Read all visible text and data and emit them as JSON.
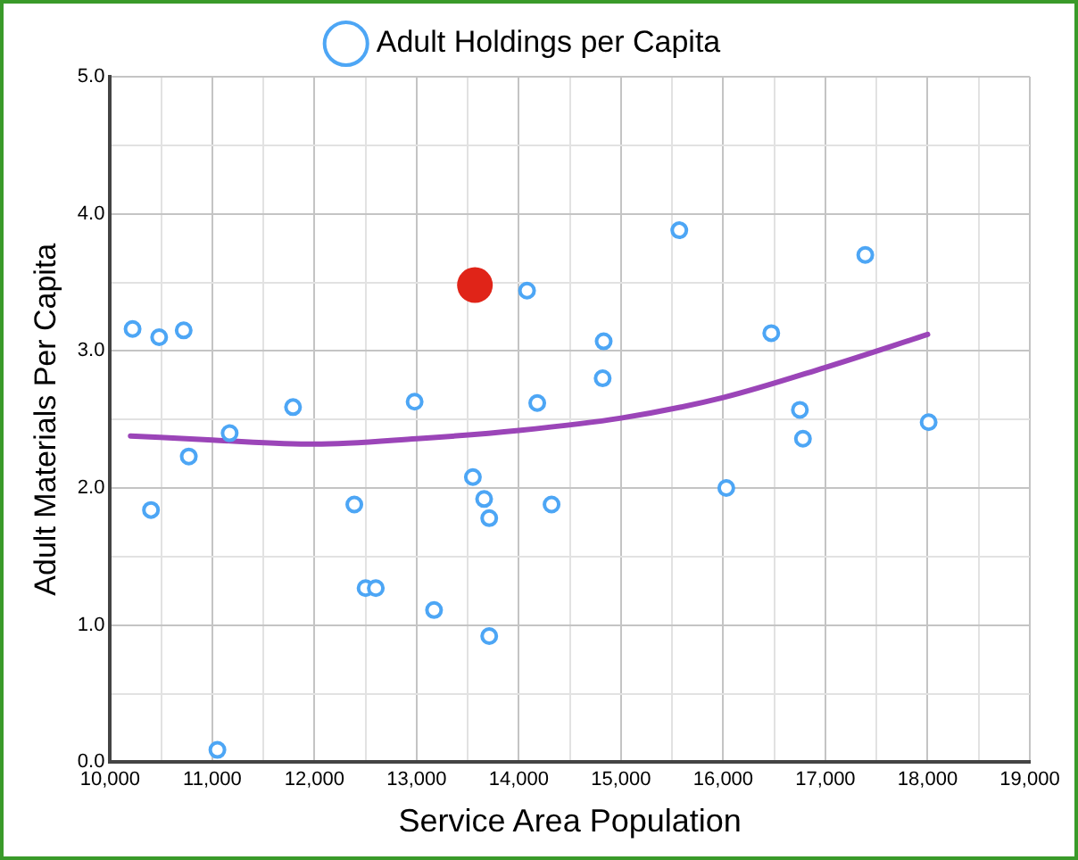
{
  "chart_data": {
    "type": "scatter",
    "xlabel": "Service Area Population",
    "ylabel": "Adult Materials Per Capita",
    "series": [
      {
        "name": "Adult Holdings per Capita",
        "color": "#4da6f5",
        "marker": "circle",
        "x": [
          10220,
          10480,
          10720,
          10400,
          10770,
          11170,
          11050,
          11790,
          12390,
          12500,
          12600,
          12980,
          13170,
          14080,
          13550,
          13660,
          13710,
          13710,
          14180,
          14320,
          14830,
          14820,
          15570,
          16030,
          16470,
          16750,
          16780,
          17390,
          18010
        ],
        "values": [
          3.16,
          3.1,
          3.15,
          1.84,
          2.23,
          2.4,
          0.09,
          2.59,
          1.88,
          1.27,
          1.27,
          2.63,
          1.11,
          3.44,
          2.08,
          1.92,
          1.78,
          0.92,
          2.62,
          1.88,
          3.07,
          2.8,
          3.88,
          2.0,
          3.13,
          2.57,
          2.36,
          3.7,
          2.48
        ]
      },
      {
        "color": "#e02418",
        "marker": "circle",
        "x": [
          13570
        ],
        "values": [
          3.48
        ]
      },
      {
        "type": "line",
        "color": "#9b45b8",
        "marker": "none",
        "line_style": "solid",
        "x": [
          10200,
          11000,
          12000,
          13000,
          14000,
          15000,
          16000,
          17000,
          18000
        ],
        "values": [
          2.38,
          2.35,
          2.32,
          2.36,
          2.42,
          2.51,
          2.66,
          2.88,
          3.12
        ]
      }
    ],
    "xlim": [
      10000,
      19000
    ],
    "xticks": [
      {
        "value": 10000,
        "label": "10,000"
      },
      {
        "value": 10500,
        "label": null
      },
      {
        "value": 11000,
        "label": "11,000"
      },
      {
        "value": 11500,
        "label": null
      },
      {
        "value": 12000,
        "label": "12,000"
      },
      {
        "value": 12500,
        "label": null
      },
      {
        "value": 13000,
        "label": "13,000"
      },
      {
        "value": 13500,
        "label": null
      },
      {
        "value": 14000,
        "label": "14,000"
      },
      {
        "value": 14500,
        "label": null
      },
      {
        "value": 15000,
        "label": "15,000"
      },
      {
        "value": 15500,
        "label": null
      },
      {
        "value": 16000,
        "label": "16,000"
      },
      {
        "value": 16500,
        "label": null
      },
      {
        "value": 17000,
        "label": "17,000"
      },
      {
        "value": 17500,
        "label": null
      },
      {
        "value": 18000,
        "label": "18,000"
      },
      {
        "value": 18500,
        "label": null
      },
      {
        "value": 19000,
        "label": "19,000"
      }
    ],
    "ylim": [
      0,
      5
    ],
    "yticks": [
      {
        "value": 0,
        "label": "0.0"
      },
      {
        "value": 0.5,
        "label": null
      },
      {
        "value": 1,
        "label": "1.0"
      },
      {
        "value": 1.5,
        "label": null
      },
      {
        "value": 2,
        "label": "2.0"
      },
      {
        "value": 2.5,
        "label": null
      },
      {
        "value": 3,
        "label": "3.0"
      },
      {
        "value": 3.5,
        "label": null
      },
      {
        "value": 4,
        "label": "4.0"
      },
      {
        "value": 4.5,
        "label": null
      },
      {
        "value": 5,
        "label": "5.0"
      }
    ],
    "grid": true,
    "legend": "top"
  }
}
